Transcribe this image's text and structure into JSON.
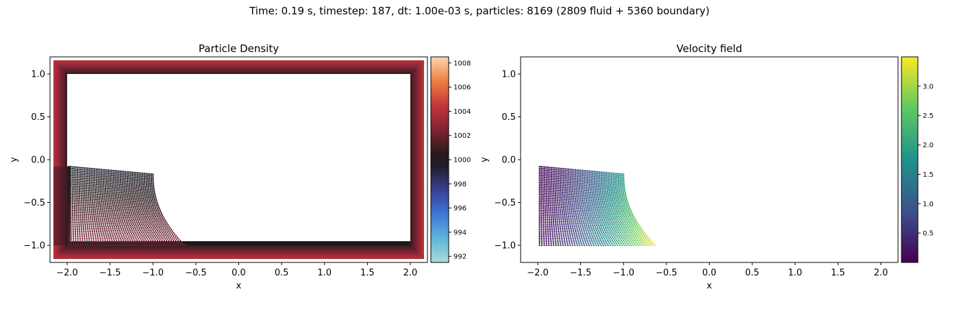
{
  "suptitle": "Time: 0.19 s, timestep: 187, dt: 1.00e-03 s, particles: 8169 (2809 fluid + 5360 boundary)",
  "chart_data": [
    {
      "type": "scatter",
      "title": "Particle Density",
      "xlabel": "x",
      "ylabel": "y",
      "xlim": [
        -2.2,
        2.2
      ],
      "ylim": [
        -1.2,
        1.2
      ],
      "xticks": [
        -2.0,
        -1.5,
        -1.0,
        -0.5,
        0.0,
        0.5,
        1.0,
        1.5,
        2.0
      ],
      "xtick_labels": [
        "−2.0",
        "−1.5",
        "−1.0",
        "−0.5",
        "0.0",
        "0.5",
        "1.0",
        "1.5",
        "2.0"
      ],
      "yticks": [
        1.0,
        0.5,
        0.0,
        -0.5,
        -1.0
      ],
      "ytick_labels": [
        "1.0",
        "0.5",
        "0.0",
        "−0.5",
        "−1.0"
      ],
      "colorbar": {
        "colormap": "icefire",
        "range": [
          991.5,
          1008.5
        ],
        "ticks": [
          1008,
          1006,
          1004,
          1002,
          1000,
          998,
          996,
          994,
          992
        ],
        "tick_labels": [
          "1008",
          "1006",
          "1004",
          "1002",
          "1000",
          "998",
          "996",
          "994",
          "992"
        ]
      },
      "boundary": {
        "inner_x": [
          -2.0,
          2.0
        ],
        "inner_y": [
          -1.0,
          1.0
        ],
        "thickness": 0.16
      },
      "fluid": {
        "x_left": -1.98,
        "x_right_top": -1.0,
        "x_right_bottom": -0.63,
        "y_bottom": -1.0,
        "y_top_left": -0.08,
        "y_top_right": -0.17,
        "density_top": 999.5,
        "density_bottom": 1002.5
      }
    },
    {
      "type": "scatter",
      "title": "Velocity field",
      "xlabel": "x",
      "ylabel": "y",
      "xlim": [
        -2.2,
        2.2
      ],
      "ylim": [
        -1.2,
        1.2
      ],
      "xticks": [
        -2.0,
        -1.5,
        -1.0,
        -0.5,
        0.0,
        0.5,
        1.0,
        1.5,
        2.0
      ],
      "xtick_labels": [
        "−2.0",
        "−1.5",
        "−1.0",
        "−0.5",
        "0.0",
        "0.5",
        "1.0",
        "1.5",
        "2.0"
      ],
      "yticks": [
        1.0,
        0.5,
        0.0,
        -0.5,
        -1.0
      ],
      "ytick_labels": [
        "1.0",
        "0.5",
        "0.0",
        "−0.5",
        "−1.0"
      ],
      "colorbar": {
        "colormap": "viridis",
        "range": [
          0.0,
          3.5
        ],
        "ticks": [
          3.0,
          2.5,
          2.0,
          1.5,
          1.0,
          0.5
        ],
        "tick_labels": [
          "3.0",
          "2.5",
          "2.0",
          "1.5",
          "1.0",
          "0.5"
        ]
      },
      "fluid": {
        "x_left": -1.98,
        "x_right_top": -1.0,
        "x_right_bottom": -0.63,
        "y_bottom": -1.0,
        "y_top_left": -0.08,
        "y_top_right": -0.17,
        "speed_max": 3.45
      }
    }
  ]
}
